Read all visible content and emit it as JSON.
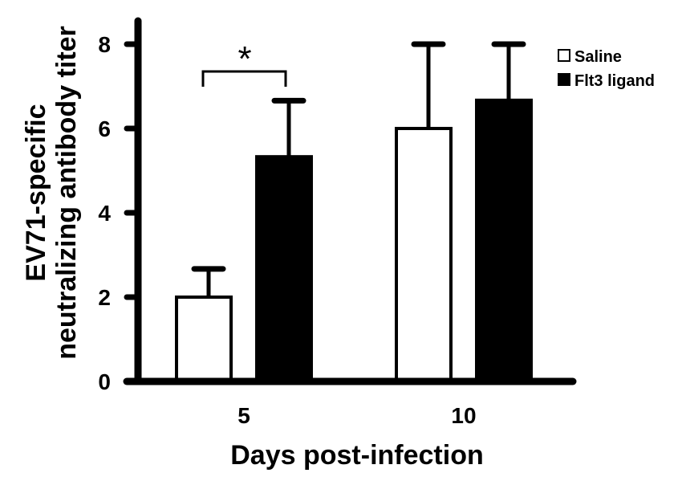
{
  "chart_data": {
    "type": "bar",
    "title": "",
    "xlabel": "Days post-infection",
    "ylabel_lines": [
      "EV71-specific",
      "neutralizing antibody titer"
    ],
    "categories": [
      "5",
      "10"
    ],
    "ylim": [
      0,
      8
    ],
    "yticks": [
      "0",
      "2",
      "4",
      "6",
      "8"
    ],
    "grid": false,
    "legend_position": "top-right",
    "series": [
      {
        "name": "Saline",
        "color": "#ffffff",
        "values": [
          2.0,
          6.0
        ],
        "errors": [
          0.67,
          2.0
        ]
      },
      {
        "name": "Flt3 ligand",
        "color": "#000000",
        "values": [
          5.33,
          6.67
        ],
        "errors": [
          1.33,
          1.33
        ]
      }
    ],
    "annotations": [
      {
        "text": "*",
        "category": "5",
        "between_series": [
          "Saline",
          "Flt3 ligand"
        ]
      }
    ]
  }
}
